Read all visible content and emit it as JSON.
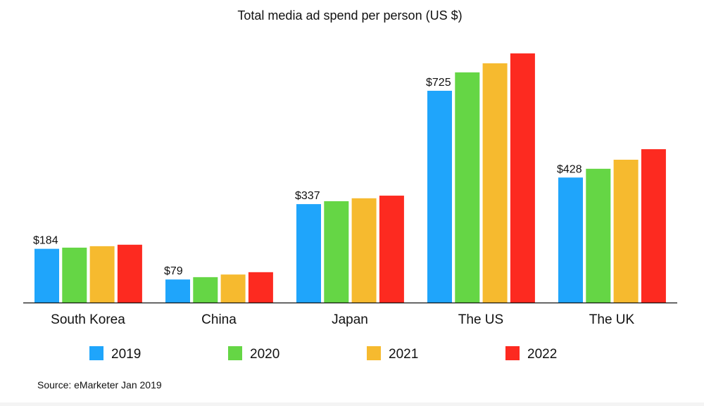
{
  "chart_data": {
    "type": "bar",
    "title": "Total media ad spend per person (US $)",
    "xlabel": "",
    "ylabel": "",
    "ylim": [
      0,
      870
    ],
    "grid": false,
    "legend_position": "bottom",
    "categories": [
      "South Korea",
      "China",
      "Japan",
      "The US",
      "The UK"
    ],
    "series": [
      {
        "name": "2019",
        "color": "#1fa5fb",
        "values": [
          184,
          79,
          337,
          725,
          428
        ]
      },
      {
        "name": "2020",
        "color": "#65d645",
        "values": [
          188,
          87,
          347,
          788,
          458
        ]
      },
      {
        "name": "2021",
        "color": "#f6ba2f",
        "values": [
          193,
          96,
          357,
          819,
          489
        ]
      },
      {
        "name": "2022",
        "color": "#fd2a20",
        "values": [
          198,
          104,
          366,
          853,
          525
        ]
      }
    ],
    "data_labels": [
      "$184",
      "$79",
      "$337",
      "$725",
      "$428"
    ]
  },
  "source": "Source: eMarketer Jan 2019"
}
